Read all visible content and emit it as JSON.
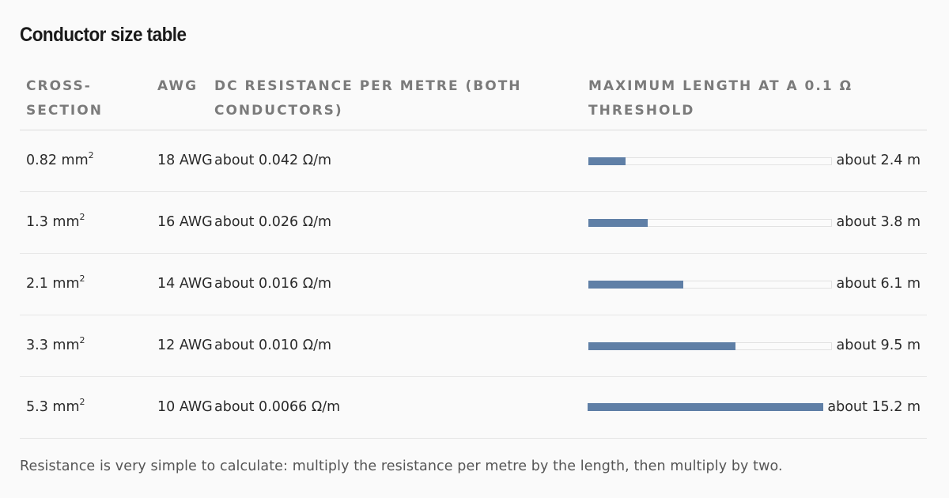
{
  "title": "Conductor size table",
  "table": {
    "headers": [
      "Cross-section",
      "AWG",
      "DC resistance per metre (both conductors)",
      "Maximum length at a 0.1 Ω threshold"
    ],
    "rows": [
      {
        "cross_section": "0.82 mm",
        "sup": "2",
        "awg": "18 AWG",
        "resistance": "about 0.042 Ω/m",
        "max_length": "about 2.4 m",
        "length_m": 2.4
      },
      {
        "cross_section": "1.3 mm",
        "sup": "2",
        "awg": "16 AWG",
        "resistance": "about 0.026 Ω/m",
        "max_length": "about 3.8 m",
        "length_m": 3.8
      },
      {
        "cross_section": "2.1 mm",
        "sup": "2",
        "awg": "14 AWG",
        "resistance": "about 0.016 Ω/m",
        "max_length": "about 6.1 m",
        "length_m": 6.1
      },
      {
        "cross_section": "3.3 mm",
        "sup": "2",
        "awg": "12 AWG",
        "resistance": "about 0.010 Ω/m",
        "max_length": "about 9.5 m",
        "length_m": 9.5
      },
      {
        "cross_section": "5.3 mm",
        "sup": "2",
        "awg": "10 AWG",
        "resistance": "about 0.0066 Ω/m",
        "max_length": "about 15.2 m",
        "length_m": 15.2
      }
    ]
  },
  "bar_color": "#5f7fa6",
  "footnote": "Resistance is very simple to calculate: multiply the resistance per metre by the length, then multiply by two."
}
